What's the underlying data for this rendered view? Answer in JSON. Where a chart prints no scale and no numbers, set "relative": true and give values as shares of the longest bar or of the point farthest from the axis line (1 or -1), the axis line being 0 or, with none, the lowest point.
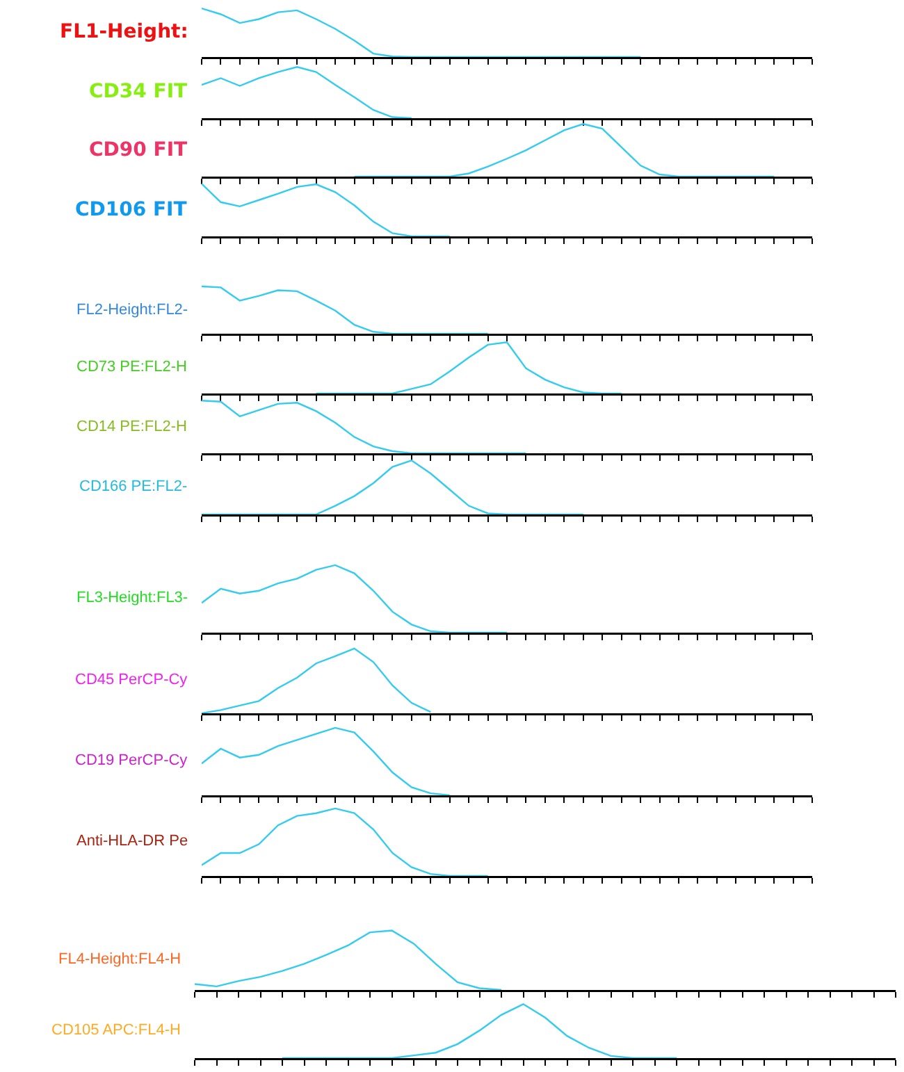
{
  "chart_data": [
    {
      "type": "line",
      "title": "FL1-Height:",
      "relative": true,
      "tick_labels": false,
      "categories": [
        null,
        null,
        null,
        null,
        null,
        null,
        null,
        null,
        null,
        null,
        null,
        null,
        null,
        null,
        null,
        null,
        null,
        null,
        null,
        null,
        null,
        null,
        null,
        null,
        null,
        null,
        null,
        null,
        null,
        null,
        null,
        null,
        null
      ],
      "series": [
        {
          "color": "#33ccee",
          "values": [
            1.0,
            0.88,
            0.7,
            0.78,
            0.92,
            0.96,
            0.78,
            0.58,
            0.34,
            0.07,
            0.01,
            0,
            0,
            0,
            0,
            0,
            0,
            0,
            0,
            0,
            0,
            0,
            0,
            0,
            null,
            null,
            null,
            null,
            null,
            null,
            null,
            null,
            null
          ]
        }
      ]
    },
    {
      "type": "line",
      "title": "CD34 FIT",
      "relative": true,
      "tick_labels": false,
      "categories": [
        null,
        null,
        null,
        null,
        null,
        null,
        null,
        null,
        null,
        null,
        null,
        null,
        null,
        null,
        null,
        null,
        null,
        null,
        null,
        null,
        null,
        null,
        null,
        null,
        null,
        null,
        null,
        null,
        null,
        null,
        null,
        null,
        null
      ],
      "series": [
        {
          "color": "#33ccee",
          "values": [
            0.65,
            0.78,
            0.63,
            0.78,
            0.9,
            1.0,
            0.9,
            0.65,
            0.41,
            0.16,
            0.02,
            0,
            null,
            null,
            null,
            null,
            null,
            null,
            null,
            null,
            null,
            null,
            null,
            null,
            null,
            null,
            null,
            null,
            null,
            null,
            null,
            null,
            null
          ]
        }
      ]
    },
    {
      "type": "line",
      "title": "CD90 FIT",
      "relative": true,
      "tick_labels": false,
      "categories": [
        null,
        null,
        null,
        null,
        null,
        null,
        null,
        null,
        null,
        null,
        null,
        null,
        null,
        null,
        null,
        null,
        null,
        null,
        null,
        null,
        null,
        null,
        null,
        null,
        null,
        null,
        null,
        null,
        null,
        null,
        null,
        null,
        null
      ],
      "series": [
        {
          "color": "#33ccee",
          "values": [
            null,
            null,
            null,
            null,
            null,
            null,
            null,
            null,
            0,
            0,
            0,
            0,
            0,
            0,
            0.06,
            0.19,
            0.34,
            0.5,
            0.69,
            0.88,
            1.0,
            0.91,
            0.56,
            0.21,
            0.04,
            0,
            0,
            0,
            0,
            0,
            0,
            null,
            null
          ]
        }
      ]
    },
    {
      "type": "line",
      "title": "CD106 FIT",
      "relative": true,
      "tick_labels": false,
      "categories": [
        null,
        null,
        null,
        null,
        null,
        null,
        null,
        null,
        null,
        null,
        null,
        null,
        null,
        null,
        null,
        null,
        null,
        null,
        null,
        null,
        null,
        null,
        null,
        null,
        null,
        null,
        null,
        null,
        null,
        null,
        null,
        null,
        null
      ],
      "series": [
        {
          "color": "#33ccee",
          "values": [
            1.0,
            0.65,
            0.57,
            0.69,
            0.81,
            0.94,
            0.99,
            0.84,
            0.59,
            0.28,
            0.06,
            0,
            0,
            0,
            null,
            null,
            null,
            null,
            null,
            null,
            null,
            null,
            null,
            null,
            null,
            null,
            null,
            null,
            null,
            null,
            null,
            null,
            null
          ]
        }
      ]
    },
    {
      "type": "line",
      "title": "FL2-Height:FL2-",
      "relative": true,
      "tick_labels": false,
      "categories": [
        null,
        null,
        null,
        null,
        null,
        null,
        null,
        null,
        null,
        null,
        null,
        null,
        null,
        null,
        null,
        null,
        null,
        null,
        null,
        null,
        null,
        null,
        null,
        null,
        null,
        null,
        null,
        null,
        null,
        null,
        null,
        null,
        null
      ],
      "series": [
        {
          "color": "#33ccee",
          "values": [
            1.0,
            0.98,
            0.7,
            0.8,
            0.92,
            0.9,
            0.7,
            0.49,
            0.19,
            0.04,
            0,
            0,
            0,
            0,
            0,
            0,
            null,
            null,
            null,
            null,
            null,
            null,
            null,
            null,
            null,
            null,
            null,
            null,
            null,
            null,
            null,
            null,
            null
          ]
        }
      ]
    },
    {
      "type": "line",
      "title": "CD73 PE:FL2-H",
      "relative": true,
      "tick_labels": false,
      "categories": [
        null,
        null,
        null,
        null,
        null,
        null,
        null,
        null,
        null,
        null,
        null,
        null,
        null,
        null,
        null,
        null,
        null,
        null,
        null,
        null,
        null,
        null,
        null,
        null,
        null,
        null,
        null,
        null,
        null,
        null,
        null,
        null,
        null
      ],
      "series": [
        {
          "color": "#33ccee",
          "values": [
            null,
            null,
            null,
            null,
            null,
            null,
            0,
            0,
            0,
            0,
            0,
            0.09,
            0.18,
            0.43,
            0.7,
            0.95,
            1.0,
            0.49,
            0.27,
            0.12,
            0.02,
            0,
            0,
            null,
            null,
            null,
            null,
            null,
            null,
            null,
            null,
            null,
            null
          ]
        }
      ]
    },
    {
      "type": "line",
      "title": "CD14 PE:FL2-H",
      "relative": true,
      "tick_labels": false,
      "categories": [
        null,
        null,
        null,
        null,
        null,
        null,
        null,
        null,
        null,
        null,
        null,
        null,
        null,
        null,
        null,
        null,
        null,
        null,
        null,
        null,
        null,
        null,
        null,
        null,
        null,
        null,
        null,
        null,
        null,
        null,
        null,
        null,
        null
      ],
      "series": [
        {
          "color": "#33ccee",
          "values": [
            1.0,
            0.98,
            0.7,
            0.82,
            0.94,
            0.96,
            0.8,
            0.58,
            0.31,
            0.13,
            0.04,
            0,
            0,
            0,
            0,
            0,
            0,
            0,
            null,
            null,
            null,
            null,
            null,
            null,
            null,
            null,
            null,
            null,
            null,
            null,
            null,
            null,
            null
          ]
        }
      ]
    },
    {
      "type": "line",
      "title": "CD166 PE:FL2-",
      "relative": true,
      "tick_labels": false,
      "categories": [
        null,
        null,
        null,
        null,
        null,
        null,
        null,
        null,
        null,
        null,
        null,
        null,
        null,
        null,
        null,
        null,
        null,
        null,
        null,
        null,
        null,
        null,
        null,
        null,
        null,
        null,
        null,
        null,
        null,
        null,
        null,
        null,
        null
      ],
      "series": [
        {
          "color": "#33ccee",
          "values": [
            0,
            0,
            0,
            0,
            0,
            0,
            0,
            0.16,
            0.34,
            0.58,
            0.88,
            1.0,
            0.76,
            0.46,
            0.16,
            0.02,
            0,
            0,
            0,
            0,
            0,
            null,
            null,
            null,
            null,
            null,
            null,
            null,
            null,
            null,
            null,
            null,
            null
          ]
        }
      ]
    },
    {
      "type": "line",
      "title": "FL3-Height:FL3-",
      "relative": true,
      "tick_labels": false,
      "categories": [
        null,
        null,
        null,
        null,
        null,
        null,
        null,
        null,
        null,
        null,
        null,
        null,
        null,
        null,
        null,
        null,
        null,
        null,
        null,
        null,
        null,
        null,
        null,
        null,
        null,
        null,
        null,
        null,
        null,
        null,
        null,
        null,
        null
      ],
      "series": [
        {
          "color": "#33ccee",
          "values": [
            0.44,
            0.65,
            0.58,
            0.62,
            0.73,
            0.8,
            0.93,
            1.0,
            0.88,
            0.62,
            0.31,
            0.12,
            0.02,
            0,
            0,
            0,
            0,
            null,
            null,
            null,
            null,
            null,
            null,
            null,
            null,
            null,
            null,
            null,
            null,
            null,
            null,
            null,
            null
          ]
        }
      ]
    },
    {
      "type": "line",
      "title": "CD45 PerCP-Cy",
      "relative": true,
      "tick_labels": false,
      "categories": [
        null,
        null,
        null,
        null,
        null,
        null,
        null,
        null,
        null,
        null,
        null,
        null,
        null,
        null,
        null,
        null,
        null,
        null,
        null,
        null,
        null,
        null,
        null,
        null,
        null,
        null,
        null,
        null,
        null,
        null,
        null,
        null,
        null
      ],
      "series": [
        {
          "color": "#33ccee",
          "values": [
            0,
            0.05,
            0.12,
            0.19,
            0.39,
            0.55,
            0.77,
            0.88,
            1.0,
            0.79,
            0.43,
            0.16,
            0.02,
            null,
            null,
            null,
            null,
            null,
            null,
            null,
            null,
            null,
            null,
            null,
            null,
            null,
            null,
            null,
            null,
            null,
            null,
            null,
            null
          ]
        }
      ]
    },
    {
      "type": "line",
      "title": "CD19 PerCP-Cy",
      "relative": true,
      "tick_labels": false,
      "categories": [
        null,
        null,
        null,
        null,
        null,
        null,
        null,
        null,
        null,
        null,
        null,
        null,
        null,
        null,
        null,
        null,
        null,
        null,
        null,
        null,
        null,
        null,
        null,
        null,
        null,
        null,
        null,
        null,
        null,
        null,
        null,
        null,
        null
      ],
      "series": [
        {
          "color": "#33ccee",
          "values": [
            0.47,
            0.69,
            0.56,
            0.6,
            0.73,
            0.82,
            0.91,
            1.0,
            0.93,
            0.65,
            0.34,
            0.12,
            0.03,
            0,
            null,
            null,
            null,
            null,
            null,
            null,
            null,
            null,
            null,
            null,
            null,
            null,
            null,
            null,
            null,
            null,
            null,
            null,
            null
          ]
        }
      ]
    },
    {
      "type": "line",
      "title": "Anti-HLA-DR Pe",
      "relative": true,
      "tick_labels": false,
      "categories": [
        null,
        null,
        null,
        null,
        null,
        null,
        null,
        null,
        null,
        null,
        null,
        null,
        null,
        null,
        null,
        null,
        null,
        null,
        null,
        null,
        null,
        null,
        null,
        null,
        null,
        null,
        null,
        null,
        null,
        null,
        null,
        null,
        null
      ],
      "series": [
        {
          "color": "#33ccee",
          "values": [
            0.16,
            0.34,
            0.34,
            0.47,
            0.75,
            0.89,
            0.93,
            1.0,
            0.93,
            0.69,
            0.34,
            0.13,
            0.03,
            0,
            0,
            0,
            null,
            null,
            null,
            null,
            null,
            null,
            null,
            null,
            null,
            null,
            null,
            null,
            null,
            null,
            null,
            null,
            null
          ]
        }
      ]
    },
    {
      "type": "line",
      "title": "FL4-Height:FL4-H",
      "relative": true,
      "tick_labels": false,
      "categories": [
        null,
        null,
        null,
        null,
        null,
        null,
        null,
        null,
        null,
        null,
        null,
        null,
        null,
        null,
        null,
        null,
        null,
        null,
        null,
        null,
        null,
        null,
        null,
        null,
        null,
        null,
        null,
        null,
        null,
        null,
        null,
        null,
        null
      ],
      "series": [
        {
          "color": "#33ccee",
          "values": [
            0.1,
            0.06,
            0.15,
            0.22,
            0.32,
            0.44,
            0.59,
            0.75,
            0.97,
            1.0,
            0.78,
            0.44,
            0.13,
            0.03,
            0,
            null,
            null,
            null,
            null,
            null,
            null,
            null,
            null,
            null,
            null,
            null,
            null,
            null,
            null,
            null,
            null,
            null,
            null
          ]
        }
      ]
    },
    {
      "type": "line",
      "title": "CD105 APC:FL4-H",
      "relative": true,
      "tick_labels": false,
      "categories": [
        null,
        null,
        null,
        null,
        null,
        null,
        null,
        null,
        null,
        null,
        null,
        null,
        null,
        null,
        null,
        null,
        null,
        null,
        null,
        null,
        null,
        null,
        null,
        null,
        null,
        null,
        null,
        null,
        null,
        null,
        null,
        null,
        null
      ],
      "series": [
        {
          "color": "#33ccee",
          "values": [
            null,
            null,
            null,
            null,
            0,
            0,
            0,
            0,
            0,
            0,
            0.05,
            0.1,
            0.26,
            0.51,
            0.8,
            1.0,
            0.75,
            0.41,
            0.19,
            0.04,
            0,
            0,
            0,
            null,
            null,
            null,
            null,
            null,
            null,
            null,
            null,
            null,
            null
          ]
        }
      ]
    }
  ]
}
